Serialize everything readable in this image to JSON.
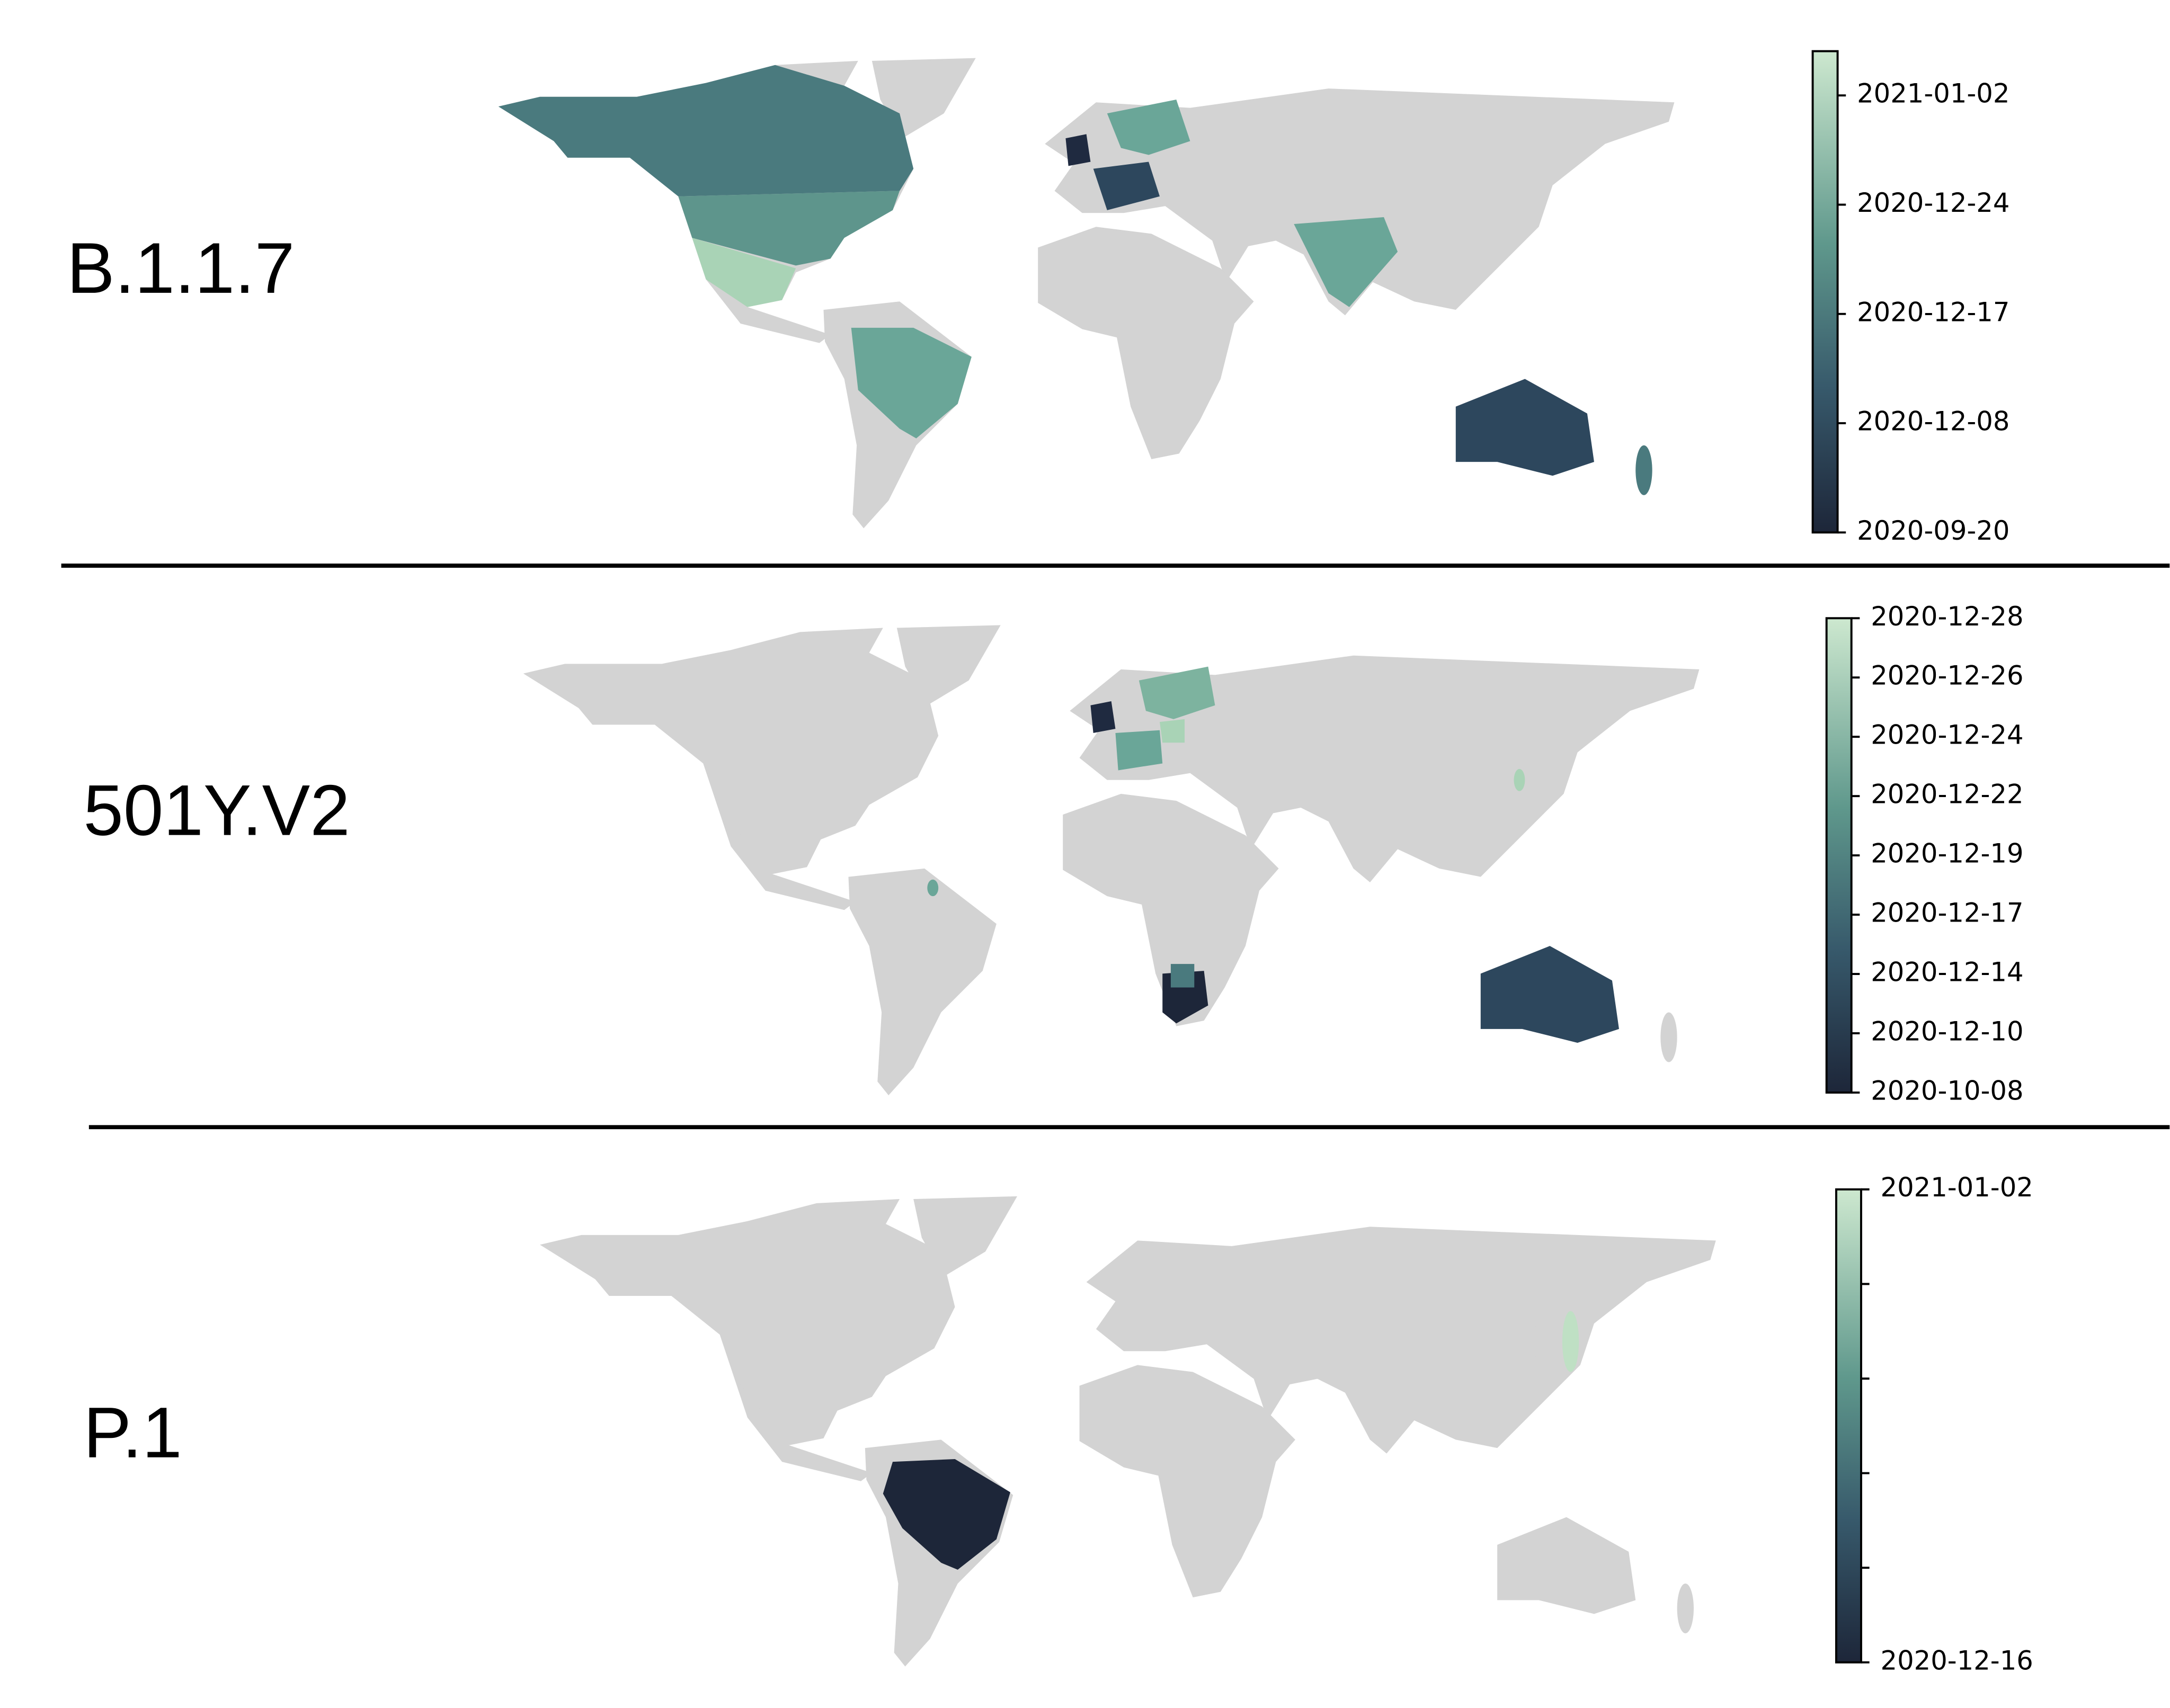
{
  "panels": [
    {
      "label": "B.1.1.7",
      "colorbar_ticks": [
        "2021-01-02",
        "2020-12-24",
        "2020-12-17",
        "2020-12-08",
        "2020-09-20"
      ]
    },
    {
      "label": "501Y.V2",
      "colorbar_ticks": [
        "2020-12-28",
        "2020-12-26",
        "2020-12-24",
        "2020-12-22",
        "2020-12-19",
        "2020-12-17",
        "2020-12-14",
        "2020-12-10",
        "2020-10-08"
      ]
    },
    {
      "label": "P.1",
      "colorbar_ticks": [
        "2021-01-02",
        null,
        null,
        null,
        null,
        "2020-12-16"
      ]
    }
  ]
}
